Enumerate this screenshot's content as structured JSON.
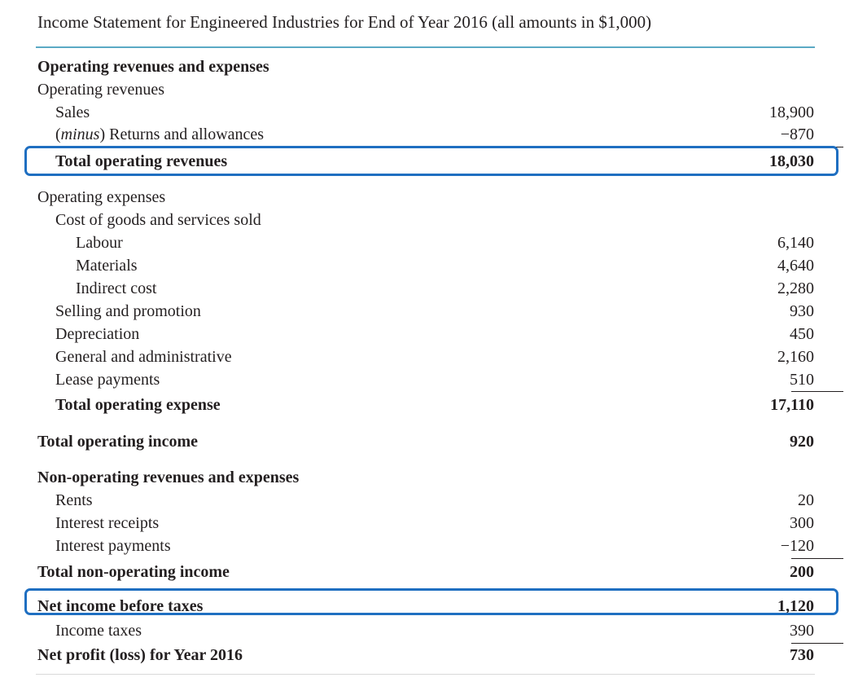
{
  "title": "Income Statement for Engineered Industries for End of Year 2016 (all amounts in $1,000)",
  "rows": [
    {
      "label": "Operating revenues and expenses",
      "value": ""
    },
    {
      "label": "Operating revenues",
      "value": ""
    },
    {
      "label": "Sales",
      "value": "18,900"
    },
    {
      "label_em": "minus",
      "label": "Returns and allowances",
      "value": "−870"
    },
    {
      "label": "Total operating revenues",
      "value": "18,030"
    },
    {
      "label": "Operating expenses",
      "value": ""
    },
    {
      "label": "Cost of goods and services sold",
      "value": ""
    },
    {
      "label": "Labour",
      "value": "6,140"
    },
    {
      "label": "Materials",
      "value": "4,640"
    },
    {
      "label": "Indirect cost",
      "value": "2,280"
    },
    {
      "label": "Selling and promotion",
      "value": "930"
    },
    {
      "label": "Depreciation",
      "value": "450"
    },
    {
      "label": "General and administrative",
      "value": "2,160"
    },
    {
      "label": "Lease payments",
      "value": "510"
    },
    {
      "label": "Total operating expense",
      "value": "17,110"
    },
    {
      "label": "Total operating income",
      "value": "920"
    },
    {
      "label": "Non-operating revenues and expenses",
      "value": ""
    },
    {
      "label": "Rents",
      "value": "20"
    },
    {
      "label": "Interest receipts",
      "value": "300"
    },
    {
      "label": "Interest payments",
      "value": "−120"
    },
    {
      "label": "Total non-operating income",
      "value": "200"
    },
    {
      "label": "Net income before taxes",
      "value": "1,120"
    },
    {
      "label": "Income taxes",
      "value": "390"
    },
    {
      "label": "Net profit (loss) for Year 2016",
      "value": "730"
    }
  ],
  "highlight_color": "#1f6fc1"
}
